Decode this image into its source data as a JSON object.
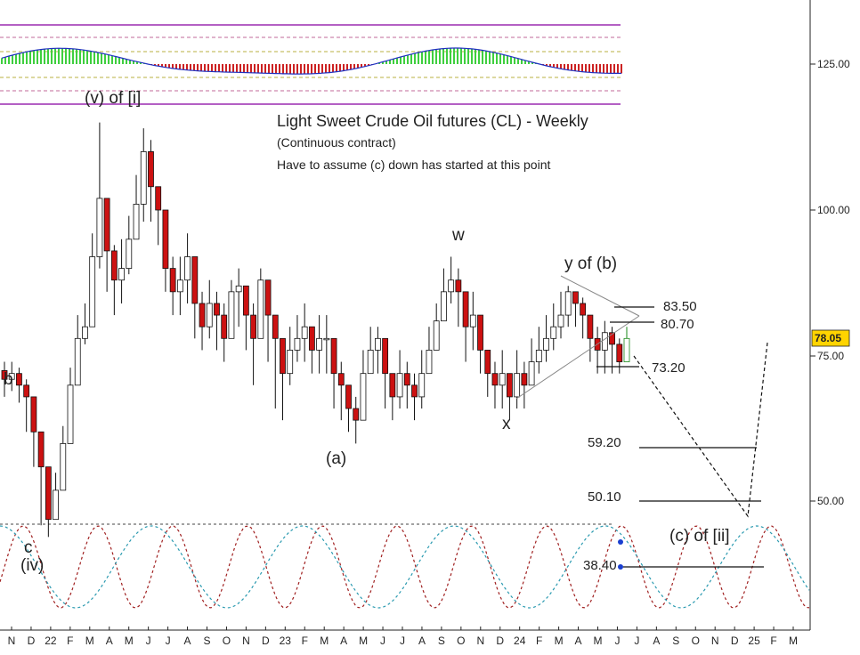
{
  "chart_data": {
    "type": "candlestick",
    "title": "Light Sweet Crude Oil futures (CL) - Weekly",
    "subtitle": "(Continuous contract)",
    "note": "Have to assume (c) down has started at this point",
    "y_ticks": [
      125,
      100,
      75,
      50
    ],
    "y_tick_labels": [
      "125.00",
      "100.00",
      "75.00",
      "50.00"
    ],
    "last_price": "78.05",
    "x_ticks": [
      "N",
      "D",
      "22",
      "F",
      "M",
      "A",
      "M",
      "J",
      "J",
      "A",
      "S",
      "O",
      "N",
      "D",
      "23",
      "F",
      "M",
      "A",
      "M",
      "J",
      "J",
      "A",
      "S",
      "O",
      "N",
      "D",
      "24",
      "F",
      "M",
      "A",
      "M",
      "J",
      "J",
      "A",
      "S",
      "O",
      "N",
      "D",
      "25",
      "F",
      "M"
    ],
    "wave_labels": [
      "b",
      "c",
      "(iv)",
      "(v) of [i]",
      "(a)",
      "w",
      "x",
      "y of (b)",
      "(c) of [ii]"
    ],
    "levels": [
      {
        "label": "83.50",
        "value": 83.5
      },
      {
        "label": "80.70",
        "value": 80.7
      },
      {
        "label": "73.20",
        "value": 73.2
      },
      {
        "label": "59.20",
        "value": 59.2
      },
      {
        "label": "50.10",
        "value": 50.1
      },
      {
        "label": "38.40",
        "value": 38.4
      }
    ],
    "ylim": [
      28,
      140
    ],
    "closes": [
      71,
      72,
      70,
      68,
      62,
      56,
      47,
      52,
      60,
      70,
      78,
      80,
      92,
      102,
      93,
      88,
      90,
      95,
      101,
      110,
      104,
      100,
      90,
      86,
      88,
      92,
      84,
      80,
      84,
      82,
      78,
      86,
      87,
      82,
      78,
      88,
      82,
      78,
      72,
      76,
      78,
      80,
      76,
      78,
      78,
      72,
      70,
      66,
      64,
      72,
      76,
      78,
      72,
      68,
      72,
      70,
      68,
      72,
      76,
      81,
      86,
      88,
      86,
      80,
      82,
      76,
      72,
      70,
      72,
      68,
      72,
      70,
      74,
      76,
      78,
      80,
      82,
      86,
      84,
      82,
      78,
      76,
      79,
      77,
      74,
      78
    ],
    "highs": [
      74,
      74,
      73,
      71,
      65,
      59,
      50,
      55,
      63,
      73,
      82,
      84,
      96,
      115,
      98,
      94,
      95,
      99,
      106,
      114,
      112,
      104,
      96,
      92,
      92,
      96,
      90,
      86,
      88,
      86,
      84,
      88,
      90,
      86,
      84,
      90,
      86,
      82,
      76,
      80,
      82,
      84,
      80,
      82,
      82,
      76,
      74,
      70,
      68,
      76,
      80,
      80,
      76,
      72,
      76,
      74,
      72,
      76,
      80,
      84,
      90,
      92,
      90,
      86,
      86,
      80,
      76,
      74,
      76,
      72,
      76,
      74,
      78,
      80,
      82,
      84,
      86,
      87,
      86,
      85,
      82,
      80,
      81,
      80,
      78,
      80
    ],
    "lows": [
      68,
      69,
      67,
      62,
      56,
      46,
      44,
      49,
      57,
      66,
      75,
      77,
      88,
      90,
      86,
      82,
      84,
      89,
      96,
      98,
      98,
      94,
      86,
      82,
      82,
      84,
      78,
      76,
      78,
      76,
      74,
      78,
      80,
      76,
      70,
      78,
      74,
      66,
      64,
      70,
      74,
      74,
      72,
      72,
      72,
      66,
      64,
      62,
      60,
      66,
      72,
      72,
      66,
      64,
      66,
      66,
      64,
      66,
      72,
      76,
      82,
      84,
      80,
      74,
      76,
      72,
      68,
      66,
      66,
      64,
      66,
      66,
      70,
      72,
      74,
      76,
      78,
      80,
      80,
      78,
      74,
      72,
      72,
      72,
      72,
      74
    ]
  }
}
